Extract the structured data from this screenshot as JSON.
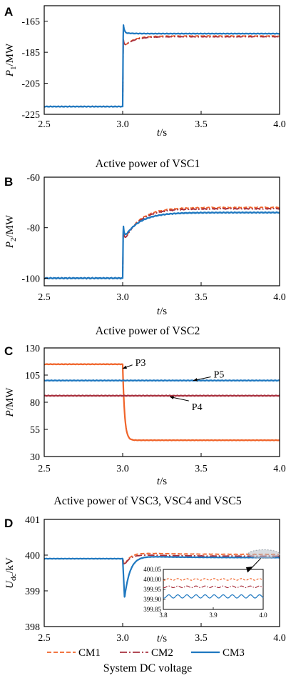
{
  "colors": {
    "CM1": "#f0642a",
    "CM2": "#a8303e",
    "CM3": "#1f78c0",
    "P3": "#f0642a",
    "P4": "#a8303e",
    "P5": "#1f78c0",
    "inset_highlight": "#b8c0c8"
  },
  "legend": {
    "entries": [
      {
        "name": "CM1",
        "style": "dashed",
        "color": "#f0642a"
      },
      {
        "name": "CM2",
        "style": "dashdot",
        "color": "#a8303e"
      },
      {
        "name": "CM3",
        "style": "solid",
        "color": "#1f78c0"
      }
    ]
  },
  "chart_data": [
    {
      "panel": "A",
      "type": "line",
      "title": "Active power of VSC1",
      "xlabel_italic": "t",
      "xlabel_unit": "/s",
      "ylabel_italic": "P",
      "ylabel_sub": "1",
      "ylabel_unit": "/MW",
      "xlim": [
        2.5,
        4.0
      ],
      "ylim": [
        -225,
        -155
      ],
      "xticks": [
        2.5,
        3.0,
        3.5,
        4.0
      ],
      "xtick_labels": [
        "2.5",
        "3.0",
        "3.5",
        "4.0"
      ],
      "yticks": [
        -225,
        -205,
        -185,
        -165
      ],
      "ytick_labels": [
        "-225",
        "-205",
        "-185",
        "-165"
      ],
      "series": [
        {
          "name": "CM1",
          "pre": -220,
          "t0": 3.0,
          "final": -174.5,
          "tau": 0.06,
          "spike": -176
        },
        {
          "name": "CM2",
          "pre": -220,
          "t0": 3.0,
          "final": -175,
          "tau": 0.06,
          "spike": -176
        },
        {
          "name": "CM3",
          "pre": -220,
          "t0": 3.0,
          "final": -173,
          "tau": 0.05,
          "spike": -166.5
        }
      ]
    },
    {
      "panel": "B",
      "type": "line",
      "title": "Active power of VSC2",
      "xlabel_italic": "t",
      "xlabel_unit": "/s",
      "ylabel_italic": "P",
      "ylabel_sub": "2",
      "ylabel_unit": "/MW",
      "xlim": [
        2.5,
        4.0
      ],
      "ylim": [
        -103,
        -60
      ],
      "xticks": [
        2.5,
        3.0,
        3.5,
        4.0
      ],
      "xtick_labels": [
        "2.5",
        "3.0",
        "3.5",
        "4.0"
      ],
      "yticks": [
        -100,
        -80,
        -60
      ],
      "ytick_labels": [
        "-100",
        "-80",
        "-60"
      ],
      "series": [
        {
          "name": "CM1",
          "pre": -100,
          "t0": 3.0,
          "final": -72,
          "tau": 0.1,
          "spike": -80
        },
        {
          "name": "CM2",
          "pre": -100,
          "t0": 3.0,
          "final": -72.5,
          "tau": 0.1,
          "spike": -80
        },
        {
          "name": "CM3",
          "pre": -100,
          "t0": 3.0,
          "final": -74,
          "tau": 0.1,
          "spike": -78.5
        }
      ]
    },
    {
      "panel": "C",
      "type": "line",
      "title": "Active power of VSC3, VSC4 and VSC5",
      "xlabel_italic": "t",
      "xlabel_unit": "/s",
      "ylabel_italic": "P",
      "ylabel_sub": "",
      "ylabel_unit": "/MW",
      "xlim": [
        2.5,
        4.0
      ],
      "ylim": [
        30,
        130
      ],
      "xticks": [
        2.5,
        3.0,
        3.5,
        4.0
      ],
      "xtick_labels": [
        "2.5",
        "3.0",
        "3.5",
        "4.0"
      ],
      "yticks": [
        30,
        55,
        80,
        105,
        130
      ],
      "ytick_labels": [
        "30",
        "55",
        "80",
        "105",
        "130"
      ],
      "series": [
        {
          "name": "P3",
          "pre": 115,
          "t0": 3.0,
          "final": 45,
          "tau": 0.012
        },
        {
          "name": "P4",
          "constant": 86
        },
        {
          "name": "P5",
          "constant": 100
        }
      ],
      "annotations": [
        {
          "text": "P3",
          "x": 3.08,
          "y": 117,
          "target_x": 3.0,
          "target_y": 111
        },
        {
          "text": "P5",
          "x": 3.58,
          "y": 106,
          "target_x": 3.45,
          "target_y": 100
        },
        {
          "text": "P4",
          "x": 3.44,
          "y": 76,
          "target_x": 3.3,
          "target_y": 85
        }
      ]
    },
    {
      "panel": "D",
      "type": "line",
      "title": "System DC voltage",
      "xlabel_italic": "t",
      "xlabel_unit": "/s",
      "ylabel_italic": "U",
      "ylabel_sub": "dc",
      "ylabel_unit": "/kV",
      "xlim": [
        2.5,
        4.0
      ],
      "ylim": [
        398,
        401
      ],
      "xticks": [
        2.5,
        3.0,
        3.5,
        4.0
      ],
      "xtick_labels": [
        "2.5",
        "3.0",
        "3.5",
        "4.0"
      ],
      "yticks": [
        398,
        399,
        400,
        401
      ],
      "ytick_labels": [
        "398",
        "399",
        "400",
        "401"
      ],
      "series": [
        {
          "name": "CM1",
          "pre": 399.9,
          "t0": 3.0,
          "dip": 399.72,
          "final": 400.02
        },
        {
          "name": "CM2",
          "pre": 399.9,
          "t0": 3.0,
          "dip": 399.72,
          "final": 399.97
        },
        {
          "name": "CM3",
          "pre": 399.9,
          "t0": 3.0,
          "dip": 398.8,
          "final": 399.93
        }
      ],
      "inset": {
        "xlim": [
          3.8,
          4.0
        ],
        "ylim": [
          399.85,
          400.05
        ],
        "xticks": [
          3.8,
          3.9,
          4.0
        ],
        "xtick_labels": [
          "3.8",
          "3.9",
          "4.0"
        ],
        "yticks": [
          400.05,
          400.0,
          399.95,
          399.9,
          399.85
        ],
        "ytick_labels": [
          "400.05",
          "400.00",
          "399.95",
          "399.90",
          "399.85"
        ],
        "series": [
          {
            "name": "CM1",
            "level": 400.0,
            "amp": 0.004
          },
          {
            "name": "CM2",
            "level": 399.963,
            "amp": 0.004
          },
          {
            "name": "CM3",
            "level": 399.915,
            "amp": 0.008
          }
        ]
      }
    }
  ]
}
